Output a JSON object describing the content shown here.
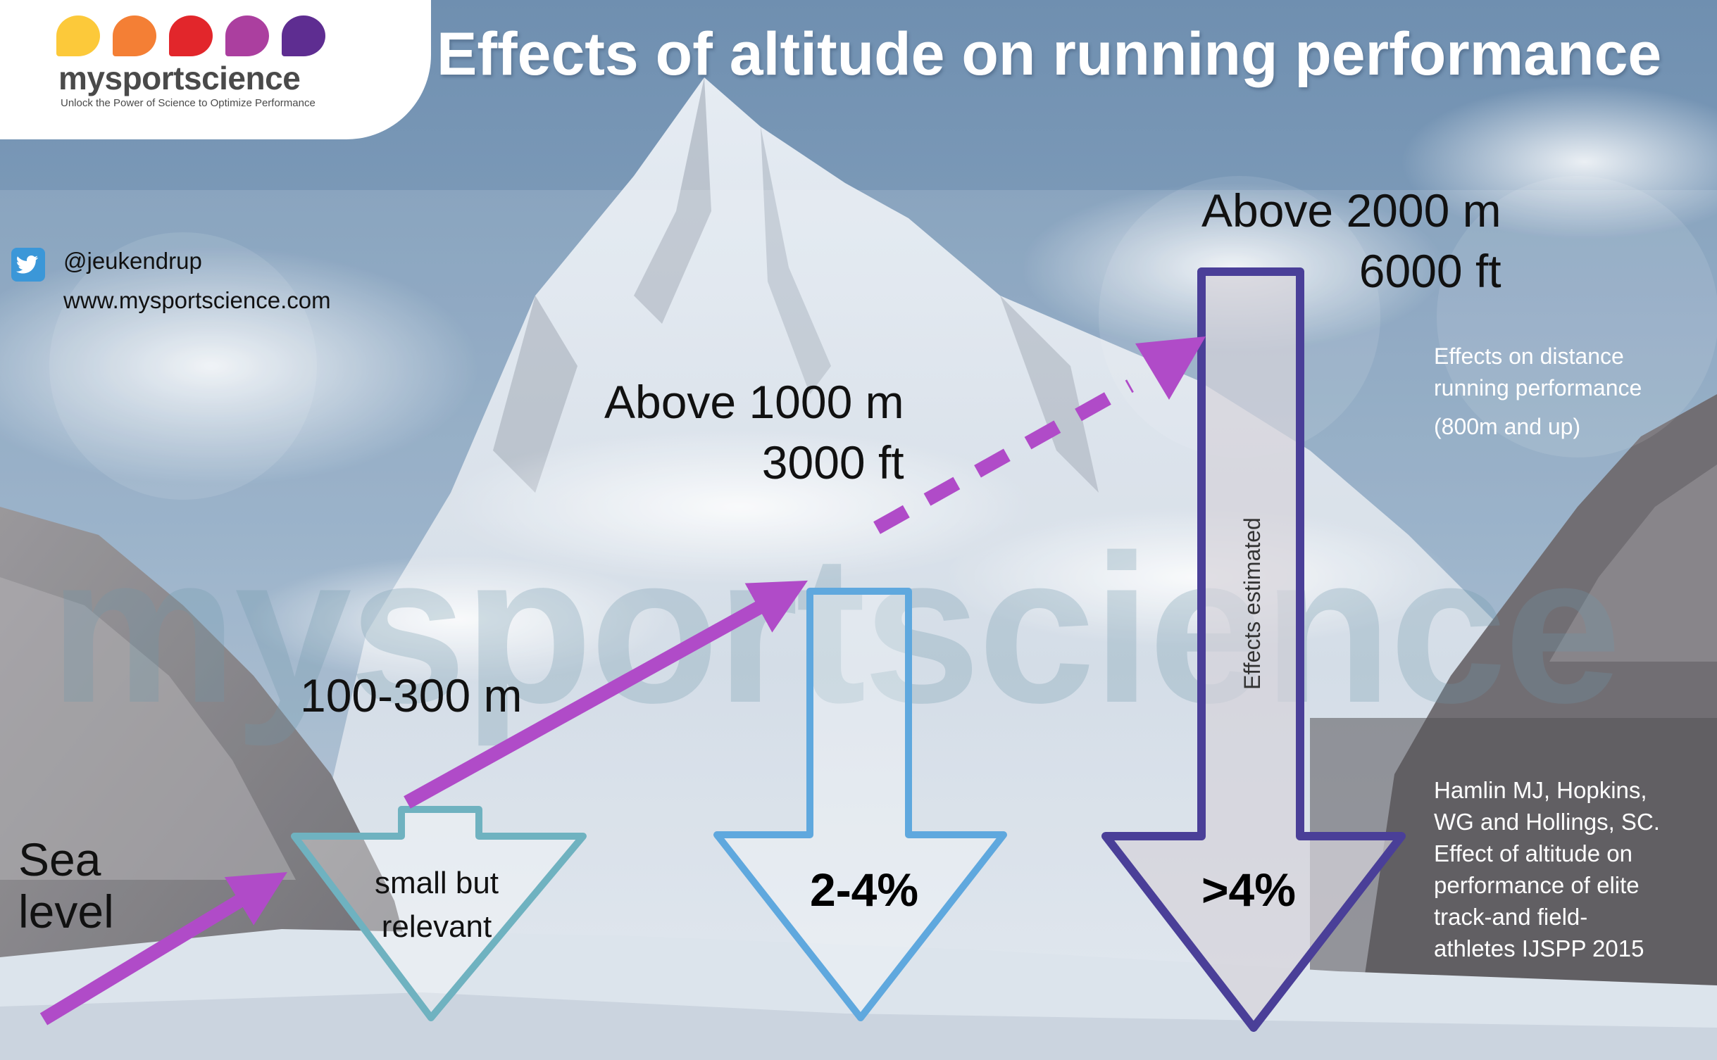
{
  "header": {
    "title": "Effects of altitude on running performance"
  },
  "logo": {
    "brand": "mysportscience",
    "tagline": "Unlock the Power of Science to Optimize Performance",
    "dot_colors": [
      "#fcc93a",
      "#f47f35",
      "#e2262b",
      "#ab3f9f",
      "#5e2d91"
    ]
  },
  "social": {
    "twitter_handle": "@jeukendrup",
    "website": "www.mysportscience.com"
  },
  "watermark": "mysportscience",
  "labels": {
    "sea_level_line1": "Sea",
    "sea_level_line2": "level",
    "low_altitude": "100-300 m",
    "mid_altitude_line1": "Above 1000 m",
    "mid_altitude_line2": "3000 ft",
    "high_altitude_line1": "Above 2000 m",
    "high_altitude_line2": "6000 ft"
  },
  "effects": {
    "low_line1": "small but",
    "low_line2": "relevant",
    "mid": "2-4%",
    "high": ">4%",
    "high_note": "Effects estimated"
  },
  "info": {
    "line1": "Effects on distance",
    "line2": "running performance",
    "line3": "(800m and up)"
  },
  "reference": {
    "line1": "Hamlin MJ, Hopkins,",
    "line2": "WG and Hollings, SC.",
    "line3": "Effect of altitude on",
    "line4": "performance of elite",
    "line5": "track-and field-",
    "line6": "athletes IJSPP 2015"
  },
  "colors": {
    "progress_arrow": "#b04bc8",
    "low_effect_outline": "#6fb2c0",
    "mid_effect_outline": "#5fa8de",
    "high_effect_outline": "#4a3f98"
  }
}
